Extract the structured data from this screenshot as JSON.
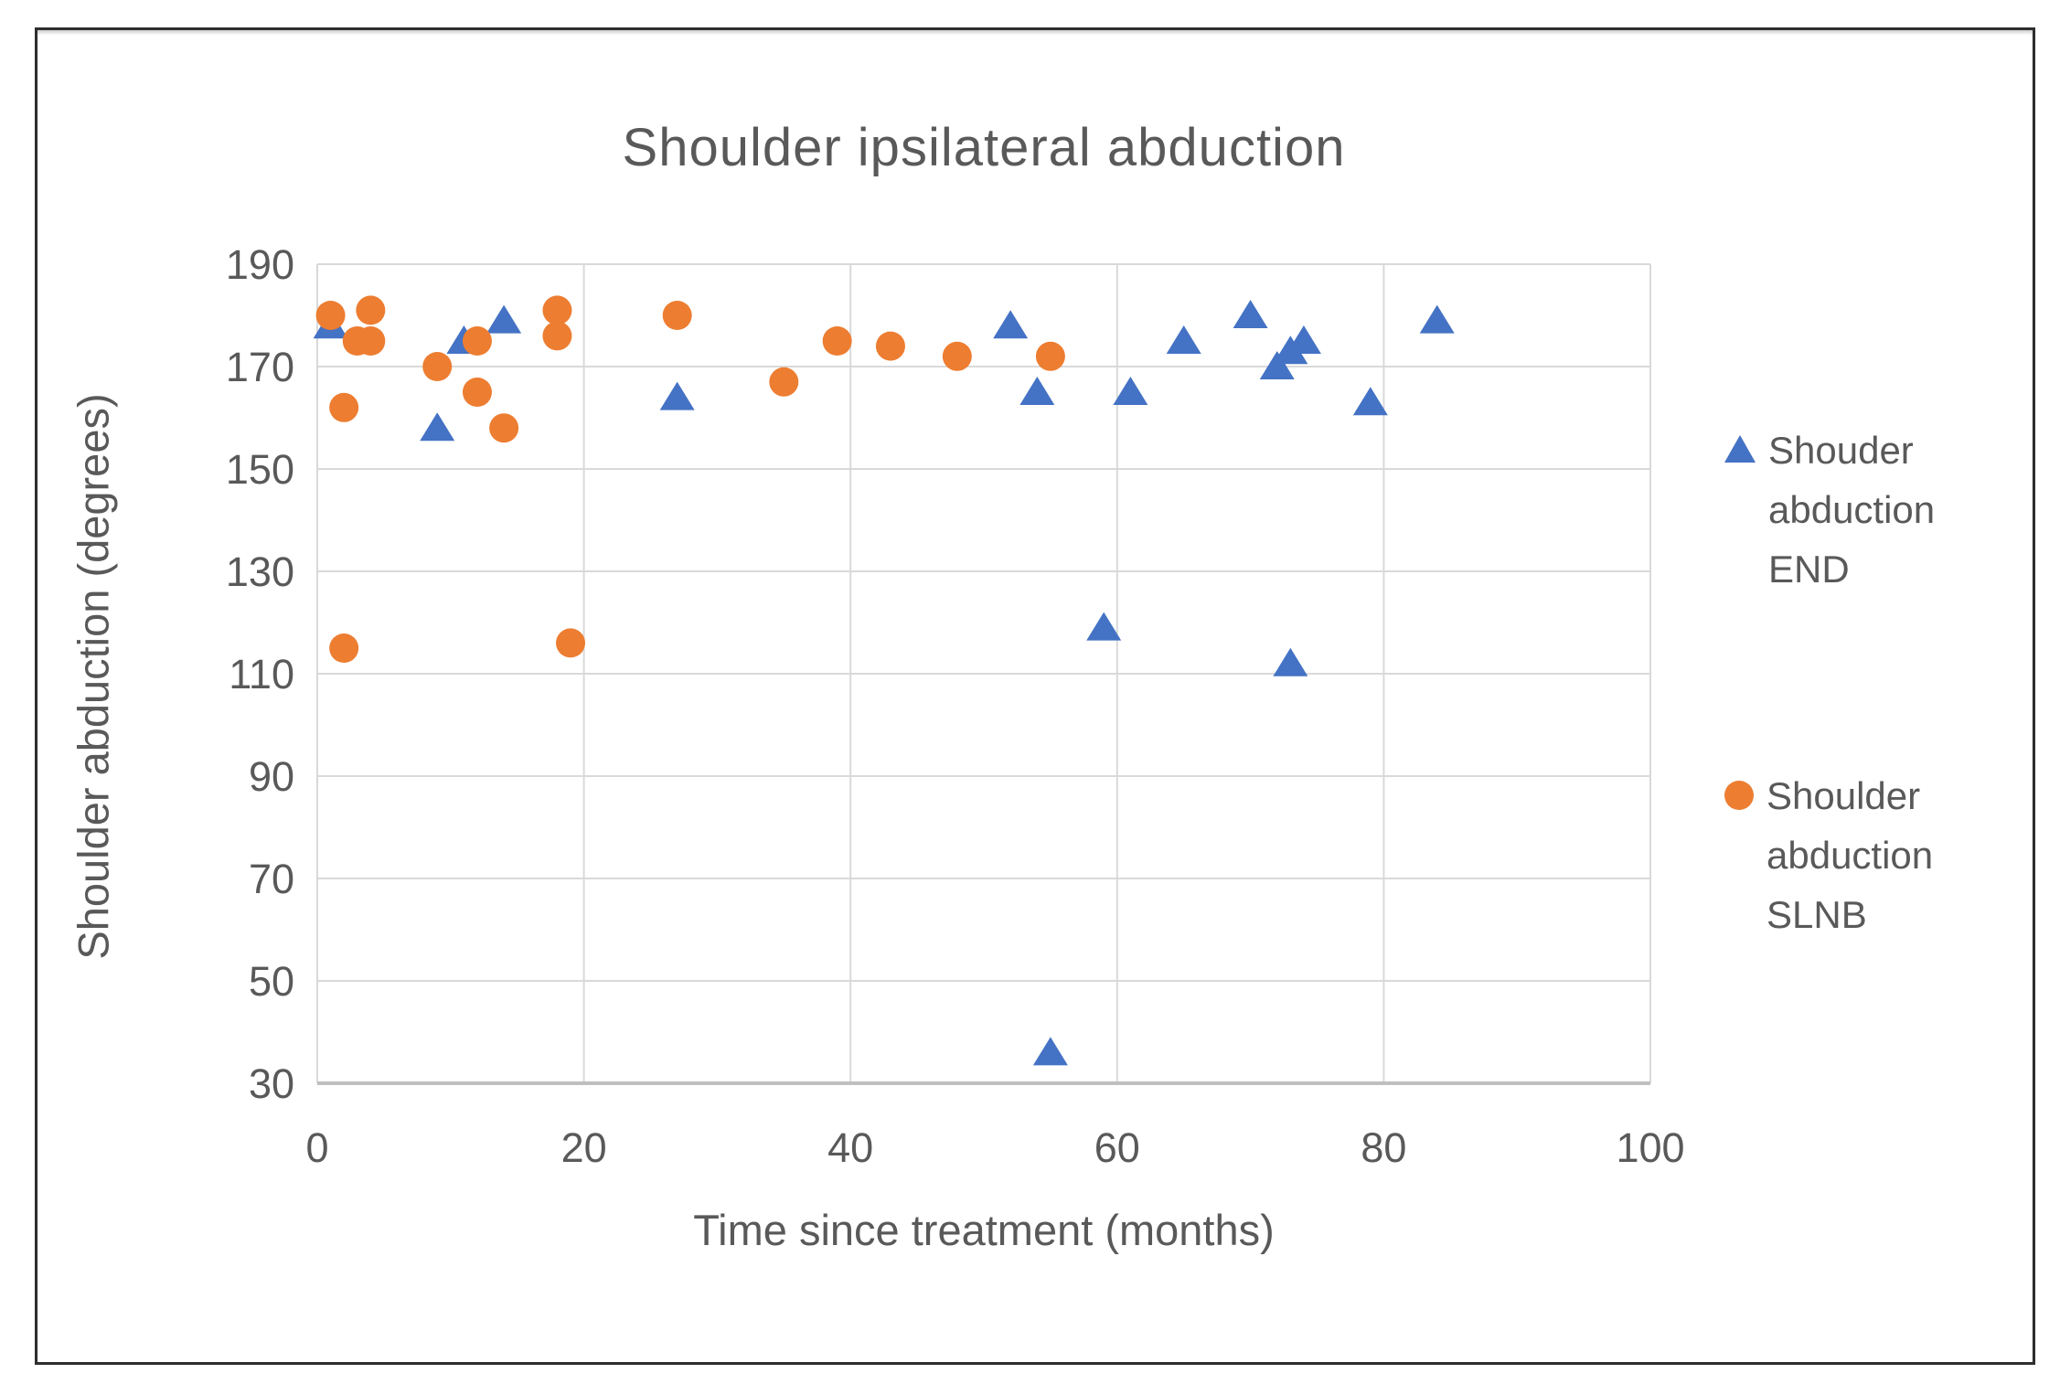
{
  "chart": {
    "title": "Shoulder ipsilateral abduction",
    "x_axis_title": "Time since treatment (months)",
    "y_axis_title": "Shoulder abduction (degrees)"
  },
  "legend": {
    "entries": [
      {
        "label": "Shouder abduction END",
        "marker": "triangle",
        "color": "#4472C4"
      },
      {
        "label": "Shoulder abduction SLNB",
        "marker": "circle",
        "color": "#ED7D31"
      }
    ]
  },
  "chart_data": {
    "type": "scatter",
    "title": "Shoulder ipsilateral abduction",
    "xlabel": "Time since treatment (months)",
    "ylabel": "Shoulder abduction (degrees)",
    "xlim": [
      0,
      100
    ],
    "ylim": [
      30,
      190
    ],
    "x_ticks": [
      0,
      20,
      40,
      60,
      80,
      100
    ],
    "y_ticks": [
      190,
      170,
      150,
      130,
      110,
      90,
      70,
      50,
      30
    ],
    "grid": true,
    "legend_position": "right",
    "text_color": "#595959",
    "gridline_color": "#D9D9D9",
    "axis_line_color": "#BFBFBF",
    "series": [
      {
        "name": "Shouder abduction END",
        "marker": "triangle",
        "color": "#4472C4",
        "points": [
          [
            1,
            178
          ],
          [
            9,
            158
          ],
          [
            11,
            175
          ],
          [
            14,
            179
          ],
          [
            27,
            164
          ],
          [
            52,
            178
          ],
          [
            54,
            165
          ],
          [
            55,
            36
          ],
          [
            59,
            119
          ],
          [
            61,
            165
          ],
          [
            65,
            175
          ],
          [
            70,
            180
          ],
          [
            72,
            170
          ],
          [
            73,
            173
          ],
          [
            73,
            112
          ],
          [
            74,
            175
          ],
          [
            79,
            163
          ],
          [
            84,
            179
          ]
        ]
      },
      {
        "name": "Shoulder abduction SLNB",
        "marker": "circle",
        "color": "#ED7D31",
        "points": [
          [
            1,
            180
          ],
          [
            2,
            162
          ],
          [
            2,
            115
          ],
          [
            3,
            175
          ],
          [
            4,
            181
          ],
          [
            4,
            175
          ],
          [
            9,
            170
          ],
          [
            12,
            175
          ],
          [
            12,
            165
          ],
          [
            14,
            158
          ],
          [
            18,
            181
          ],
          [
            18,
            176
          ],
          [
            19,
            116
          ],
          [
            27,
            180
          ],
          [
            35,
            167
          ],
          [
            39,
            175
          ],
          [
            43,
            174
          ],
          [
            48,
            172
          ],
          [
            55,
            172
          ]
        ]
      }
    ]
  }
}
